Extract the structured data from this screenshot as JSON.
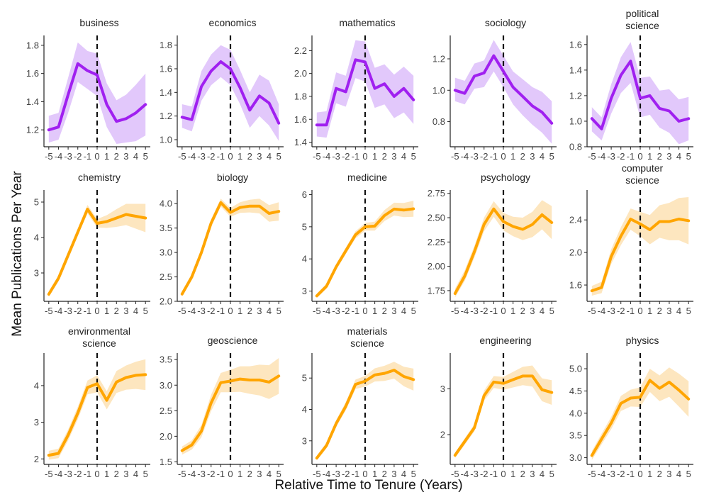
{
  "figure": {
    "xlabel": "Relative Time to Tenure (Years)",
    "ylabel": "Mean Publications Per Year",
    "colors": {
      "purple": "#a020f0",
      "purple_band": "#e2c8fb",
      "orange": "#ffa500",
      "orange_band": "#fde6bf"
    }
  },
  "chart_data": [
    {
      "type": "line",
      "title": "business",
      "color": "purple",
      "x": [
        -5,
        -4,
        -3,
        -2,
        -1,
        0,
        1,
        2,
        3,
        4,
        5
      ],
      "y": [
        1.2,
        1.22,
        1.45,
        1.67,
        1.62,
        1.59,
        1.38,
        1.26,
        1.28,
        1.32,
        1.38
      ],
      "lower": [
        1.11,
        1.13,
        1.32,
        1.54,
        1.49,
        1.44,
        1.22,
        1.1,
        1.11,
        1.12,
        1.16
      ],
      "upper": [
        1.3,
        1.32,
        1.57,
        1.82,
        1.76,
        1.74,
        1.53,
        1.41,
        1.45,
        1.52,
        1.6
      ],
      "yticks": [
        1.2,
        1.4,
        1.6,
        1.8
      ],
      "ytick_labels": [
        "1.2",
        "1.4",
        "1.6",
        "1.8"
      ],
      "ylim": [
        1.08,
        1.86
      ],
      "xtick_labels": [
        "-5",
        "-4",
        "-3",
        "-2",
        "-1",
        "0",
        "1",
        "2",
        "3",
        "4",
        "5"
      ]
    },
    {
      "type": "line",
      "title": "economics",
      "color": "purple",
      "x": [
        -5,
        -4,
        -3,
        -2,
        -1,
        0,
        1,
        2,
        3,
        4,
        5
      ],
      "y": [
        1.19,
        1.17,
        1.45,
        1.58,
        1.66,
        1.6,
        1.44,
        1.25,
        1.37,
        1.31,
        1.14
      ],
      "lower": [
        1.1,
        1.07,
        1.33,
        1.46,
        1.53,
        1.46,
        1.3,
        1.1,
        1.2,
        1.12,
        0.99
      ],
      "upper": [
        1.3,
        1.28,
        1.58,
        1.72,
        1.8,
        1.76,
        1.59,
        1.4,
        1.55,
        1.5,
        1.3
      ],
      "yticks": [
        1.0,
        1.2,
        1.4,
        1.6,
        1.8
      ],
      "ytick_labels": [
        "1.0",
        "1.2",
        "1.4",
        "1.6",
        "1.8"
      ],
      "ylim": [
        0.94,
        1.87
      ],
      "xtick_labels": [
        "-5",
        "-4",
        "-3",
        "-2",
        "-1",
        "0",
        "1",
        "2",
        "3",
        "4",
        "5"
      ]
    },
    {
      "type": "line",
      "title": "mathematics",
      "color": "purple",
      "x": [
        -5,
        -4,
        -3,
        -2,
        -1,
        0,
        1,
        2,
        3,
        4,
        5
      ],
      "y": [
        1.55,
        1.55,
        1.87,
        1.84,
        2.12,
        2.1,
        1.87,
        1.91,
        1.8,
        1.87,
        1.77
      ],
      "lower": [
        1.45,
        1.44,
        1.74,
        1.71,
        1.96,
        1.93,
        1.7,
        1.73,
        1.61,
        1.66,
        1.56
      ],
      "upper": [
        1.66,
        1.67,
        2.01,
        1.98,
        2.29,
        2.28,
        2.05,
        2.08,
        1.99,
        2.06,
        1.98
      ],
      "yticks": [
        1.4,
        1.6,
        1.8,
        2.0,
        2.2
      ],
      "ytick_labels": [
        "1.4",
        "1.6",
        "1.8",
        "2.0",
        "2.2"
      ],
      "ylim": [
        1.36,
        2.32
      ],
      "xtick_labels": [
        "-5",
        "-4",
        "-3",
        "-2",
        "-1",
        "0",
        "1",
        "2",
        "3",
        "4",
        "5"
      ]
    },
    {
      "type": "line",
      "title": "sociology",
      "color": "purple",
      "x": [
        -5,
        -4,
        -3,
        -2,
        -1,
        0,
        1,
        2,
        3,
        4,
        5
      ],
      "y": [
        1.0,
        0.98,
        1.09,
        1.11,
        1.22,
        1.12,
        1.02,
        0.96,
        0.9,
        0.86,
        0.79
      ],
      "lower": [
        0.93,
        0.91,
        1.01,
        1.02,
        1.12,
        1.02,
        0.91,
        0.84,
        0.78,
        0.73,
        0.66
      ],
      "upper": [
        1.08,
        1.06,
        1.17,
        1.19,
        1.32,
        1.22,
        1.12,
        1.07,
        1.02,
        0.99,
        0.93
      ],
      "yticks": [
        0.8,
        1.0,
        1.2
      ],
      "ytick_labels": [
        "0.8",
        "1.0",
        "1.2"
      ],
      "ylim": [
        0.64,
        1.34
      ],
      "xtick_labels": [
        "-5",
        "-4",
        "-3",
        "-2",
        "-1",
        "0",
        "1",
        "2",
        "3",
        "4",
        "5"
      ]
    },
    {
      "type": "line",
      "title": "political science",
      "title_lines": [
        "political",
        "science"
      ],
      "color": "purple",
      "x": [
        -5,
        -4,
        -3,
        -2,
        -1,
        0,
        1,
        2,
        3,
        4,
        5
      ],
      "y": [
        1.02,
        0.94,
        1.18,
        1.36,
        1.47,
        1.18,
        1.2,
        1.1,
        1.08,
        1.0,
        1.02
      ],
      "lower": [
        0.92,
        0.85,
        1.06,
        1.22,
        1.3,
        1.03,
        1.05,
        0.95,
        0.91,
        0.82,
        0.85
      ],
      "upper": [
        1.11,
        1.03,
        1.29,
        1.5,
        1.62,
        1.34,
        1.35,
        1.24,
        1.25,
        1.17,
        1.19
      ],
      "yticks": [
        0.8,
        1.0,
        1.2,
        1.4,
        1.6
      ],
      "ytick_labels": [
        "0.8",
        "1.0",
        "1.2",
        "1.4",
        "1.6"
      ],
      "ylim": [
        0.8,
        1.66
      ],
      "xtick_labels": [
        "-5",
        "-4",
        "-3",
        "-2",
        "-1",
        "0",
        "1",
        "2",
        "3",
        "4",
        "5"
      ]
    },
    {
      "type": "line",
      "title": "chemistry",
      "color": "orange",
      "x": [
        -5,
        -4,
        -3,
        -2,
        -1,
        0,
        1,
        2,
        3,
        4,
        5
      ],
      "y": [
        2.4,
        2.85,
        3.5,
        4.15,
        4.8,
        4.4,
        4.45,
        4.55,
        4.65,
        4.6,
        4.55
      ],
      "lower": [
        2.32,
        2.76,
        3.4,
        4.05,
        4.68,
        4.28,
        4.27,
        4.3,
        4.35,
        4.25,
        4.15
      ],
      "upper": [
        2.48,
        2.94,
        3.6,
        4.25,
        4.92,
        4.52,
        4.63,
        4.8,
        4.95,
        4.95,
        4.95
      ],
      "yticks": [
        3,
        4,
        5
      ],
      "ytick_labels": [
        "3",
        "4",
        "5"
      ],
      "ylim": [
        2.2,
        5.3
      ],
      "xtick_labels": [
        "-5",
        "-4",
        "-3",
        "-2",
        "-1",
        "0",
        "1",
        "2",
        "3",
        "4",
        "5"
      ]
    },
    {
      "type": "line",
      "title": "biology",
      "color": "orange",
      "x": [
        -5,
        -4,
        -3,
        -2,
        -1,
        0,
        1,
        2,
        3,
        4,
        5
      ],
      "y": [
        2.15,
        2.5,
        3.0,
        3.6,
        4.02,
        3.82,
        3.92,
        3.95,
        3.95,
        3.8,
        3.84
      ],
      "lower": [
        2.1,
        2.44,
        2.93,
        3.52,
        3.94,
        3.73,
        3.81,
        3.82,
        3.8,
        3.63,
        3.65
      ],
      "upper": [
        2.2,
        2.56,
        3.07,
        3.68,
        4.1,
        3.91,
        4.03,
        4.08,
        4.1,
        3.97,
        4.03
      ],
      "yticks": [
        2.0,
        2.5,
        3.0,
        3.5,
        4.0
      ],
      "ytick_labels": [
        "2.0",
        "2.5",
        "3.0",
        "3.5",
        "4.0"
      ],
      "ylim": [
        2.0,
        4.25
      ],
      "xtick_labels": [
        "-5",
        "-4",
        "-3",
        "-2",
        "-1",
        "0",
        "1",
        "2",
        "3",
        "4",
        "5"
      ]
    },
    {
      "type": "line",
      "title": "medicine",
      "color": "orange",
      "x": [
        -5,
        -4,
        -3,
        -2,
        -1,
        0,
        1,
        2,
        3,
        4,
        5
      ],
      "y": [
        2.85,
        3.15,
        3.75,
        4.25,
        4.75,
        5.0,
        5.02,
        5.35,
        5.55,
        5.52,
        5.56
      ],
      "lower": [
        2.78,
        3.07,
        3.66,
        4.15,
        4.64,
        4.88,
        4.88,
        5.18,
        5.35,
        5.3,
        5.31
      ],
      "upper": [
        2.92,
        3.23,
        3.84,
        4.35,
        4.86,
        5.12,
        5.16,
        5.52,
        5.75,
        5.74,
        5.81
      ],
      "yticks": [
        3,
        4,
        5,
        6
      ],
      "ytick_labels": [
        "3",
        "4",
        "5",
        "6"
      ],
      "ylim": [
        2.68,
        6.1
      ],
      "xtick_labels": [
        "-5",
        "-4",
        "-3",
        "-2",
        "-1",
        "0",
        "1",
        "2",
        "3",
        "4",
        "5"
      ]
    },
    {
      "type": "line",
      "title": "psychology",
      "color": "orange",
      "x": [
        -5,
        -4,
        -3,
        -2,
        -1,
        0,
        1,
        2,
        3,
        4,
        5
      ],
      "y": [
        1.72,
        1.9,
        2.15,
        2.43,
        2.59,
        2.46,
        2.41,
        2.38,
        2.43,
        2.53,
        2.45
      ],
      "lower": [
        1.68,
        1.85,
        2.09,
        2.36,
        2.51,
        2.37,
        2.31,
        2.27,
        2.3,
        2.38,
        2.28
      ],
      "upper": [
        1.77,
        1.96,
        2.21,
        2.5,
        2.67,
        2.55,
        2.51,
        2.5,
        2.56,
        2.68,
        2.62
      ],
      "yticks": [
        1.75,
        2.0,
        2.25,
        2.5,
        2.75
      ],
      "ytick_labels": [
        "1.75",
        "2.00",
        "2.25",
        "2.50",
        "2.75"
      ],
      "ylim": [
        1.64,
        2.77
      ],
      "xtick_labels": [
        "-5",
        "-4",
        "-3",
        "-2",
        "-1",
        "0",
        "1",
        "2",
        "3",
        "4",
        "5"
      ]
    },
    {
      "type": "line",
      "title": "computer science",
      "title_lines": [
        "computer",
        "science"
      ],
      "color": "orange",
      "x": [
        -5,
        -4,
        -3,
        -2,
        -1,
        0,
        1,
        2,
        3,
        4,
        5
      ],
      "y": [
        1.53,
        1.57,
        1.95,
        2.2,
        2.41,
        2.35,
        2.28,
        2.38,
        2.38,
        2.41,
        2.39
      ],
      "lower": [
        1.47,
        1.5,
        1.86,
        2.09,
        2.28,
        2.2,
        2.1,
        2.18,
        2.15,
        2.15,
        2.1
      ],
      "upper": [
        1.59,
        1.64,
        2.04,
        2.31,
        2.54,
        2.5,
        2.46,
        2.58,
        2.61,
        2.67,
        2.68
      ],
      "yticks": [
        1.6,
        2.0,
        2.4
      ],
      "ytick_labels": [
        "1.6",
        "2.0",
        "2.4"
      ],
      "ylim": [
        1.4,
        2.75
      ],
      "xtick_labels": [
        "-5",
        "-4",
        "-3",
        "-2",
        "-1",
        "0",
        "1",
        "2",
        "3",
        "4",
        "5"
      ]
    },
    {
      "type": "line",
      "title": "environmental science",
      "title_lines": [
        "environmental",
        "science"
      ],
      "color": "orange",
      "x": [
        -5,
        -4,
        -3,
        -2,
        -1,
        0,
        1,
        2,
        3,
        4,
        5
      ],
      "y": [
        2.1,
        2.15,
        2.65,
        3.25,
        3.95,
        4.05,
        3.6,
        4.1,
        4.22,
        4.28,
        4.3
      ],
      "lower": [
        1.98,
        2.02,
        2.5,
        3.08,
        3.76,
        3.82,
        3.35,
        3.8,
        3.89,
        3.91,
        3.88
      ],
      "upper": [
        2.22,
        2.28,
        2.8,
        3.42,
        4.14,
        4.28,
        3.85,
        4.4,
        4.55,
        4.65,
        4.72
      ],
      "yticks": [
        2,
        3,
        4
      ],
      "ytick_labels": [
        "2",
        "3",
        "4"
      ],
      "ylim": [
        1.85,
        4.85
      ],
      "xtick_labels": [
        "-5",
        "-4",
        "-3",
        "-2",
        "-1",
        "0",
        "1",
        "2",
        "3",
        "4",
        "5"
      ]
    },
    {
      "type": "line",
      "title": "geoscience",
      "color": "orange",
      "x": [
        -5,
        -4,
        -3,
        -2,
        -1,
        0,
        1,
        2,
        3,
        4,
        5
      ],
      "y": [
        1.72,
        1.83,
        2.1,
        2.65,
        3.05,
        3.08,
        3.12,
        3.1,
        3.1,
        3.06,
        3.18
      ],
      "lower": [
        1.64,
        1.74,
        1.98,
        2.49,
        2.86,
        2.86,
        2.87,
        2.83,
        2.8,
        2.73,
        2.83
      ],
      "upper": [
        1.8,
        1.92,
        2.22,
        2.81,
        3.24,
        3.3,
        3.37,
        3.37,
        3.4,
        3.39,
        3.53
      ],
      "yticks": [
        1.5,
        2.0,
        2.5,
        3.0,
        3.5
      ],
      "ytick_labels": [
        "1.5",
        "2.0",
        "2.5",
        "3.0",
        "3.5"
      ],
      "ylim": [
        1.45,
        3.6
      ],
      "xtick_labels": [
        "-5",
        "-4",
        "-3",
        "-2",
        "-1",
        "0",
        "1",
        "2",
        "3",
        "4",
        "5"
      ]
    },
    {
      "type": "line",
      "title": "materials science",
      "title_lines": [
        "materials",
        "science"
      ],
      "color": "orange",
      "x": [
        -5,
        -4,
        -3,
        -2,
        -1,
        0,
        1,
        2,
        3,
        4,
        5
      ],
      "y": [
        2.45,
        2.85,
        3.55,
        4.1,
        4.8,
        4.9,
        5.1,
        5.15,
        5.25,
        5.05,
        4.95
      ],
      "lower": [
        2.38,
        2.76,
        3.44,
        3.97,
        4.65,
        4.73,
        4.89,
        4.91,
        4.98,
        4.74,
        4.6
      ],
      "upper": [
        2.52,
        2.94,
        3.66,
        4.23,
        4.95,
        5.07,
        5.31,
        5.39,
        5.52,
        5.36,
        5.3
      ],
      "yticks": [
        3,
        4,
        5
      ],
      "ytick_labels": [
        "3",
        "4",
        "5"
      ],
      "ylim": [
        2.25,
        5.75
      ],
      "xtick_labels": [
        "-5",
        "-4",
        "-3",
        "-2",
        "-1",
        "0",
        "1",
        "2",
        "3",
        "4",
        "5"
      ]
    },
    {
      "type": "line",
      "title": "engineering",
      "color": "orange",
      "x": [
        -5,
        -4,
        -3,
        -2,
        -1,
        0,
        1,
        2,
        3,
        4,
        5
      ],
      "y": [
        1.55,
        1.85,
        2.15,
        2.85,
        3.15,
        3.12,
        3.2,
        3.28,
        3.28,
        2.98,
        2.92
      ],
      "lower": [
        1.49,
        1.78,
        2.07,
        2.74,
        3.02,
        2.98,
        3.03,
        3.08,
        3.05,
        2.73,
        2.65
      ],
      "upper": [
        1.61,
        1.92,
        2.23,
        2.96,
        3.28,
        3.26,
        3.37,
        3.48,
        3.51,
        3.23,
        3.19
      ],
      "yticks": [
        2,
        3
      ],
      "ytick_labels": [
        "2",
        "3"
      ],
      "ylim": [
        1.35,
        3.75
      ],
      "xtick_labels": [
        "-5",
        "-4",
        "-3",
        "-2",
        "-1",
        "0",
        "1",
        "2",
        "3",
        "4",
        "5"
      ]
    },
    {
      "type": "line",
      "title": "physics",
      "color": "orange",
      "x": [
        -5,
        -4,
        -3,
        -2,
        -1,
        0,
        1,
        2,
        3,
        4,
        5
      ],
      "y": [
        3.05,
        3.42,
        3.78,
        4.22,
        4.34,
        4.36,
        4.74,
        4.56,
        4.7,
        4.52,
        4.32
      ],
      "lower": [
        2.95,
        3.3,
        3.64,
        4.05,
        4.15,
        4.14,
        4.48,
        4.27,
        4.37,
        4.15,
        3.92
      ],
      "upper": [
        3.15,
        3.54,
        3.92,
        4.39,
        4.53,
        4.58,
        5.0,
        4.85,
        5.03,
        4.89,
        4.72
      ],
      "yticks": [
        3.0,
        3.5,
        4.0,
        4.5,
        5.0
      ],
      "ytick_labels": [
        "3.0",
        "3.5",
        "4.0",
        "4.5",
        "5.0"
      ],
      "ylim": [
        2.85,
        5.32
      ],
      "xtick_labels": [
        "-5",
        "-4",
        "-3",
        "-2",
        "-1",
        "0",
        "1",
        "2",
        "3",
        "4",
        "5"
      ]
    }
  ]
}
